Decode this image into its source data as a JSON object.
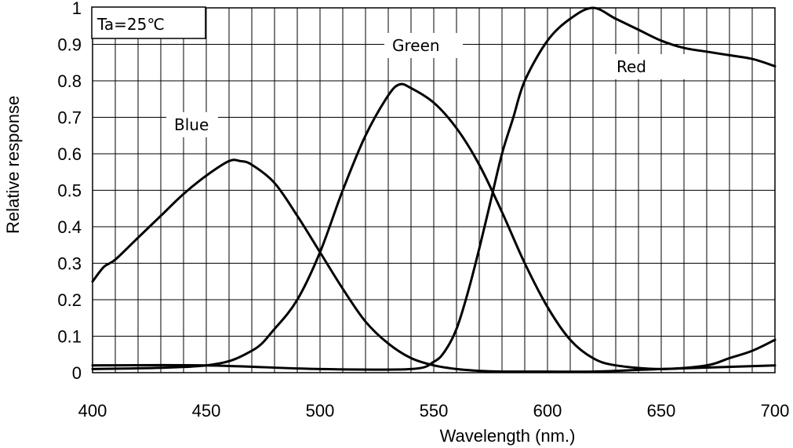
{
  "chart_data": {
    "type": "line",
    "title": "",
    "xlabel": "Wavelength (nm.)",
    "ylabel": "Relative response",
    "xlim": [
      400,
      700
    ],
    "ylim": [
      0,
      1
    ],
    "x_ticks": [
      "400",
      "450",
      "500",
      "550",
      "600",
      "650",
      "700"
    ],
    "y_ticks": [
      "0",
      "0.1",
      "0.2",
      "0.3",
      "0.4",
      "0.5",
      "0.6",
      "0.7",
      "0.8",
      "0.9",
      "1"
    ],
    "grid": true,
    "x_grid_step": 10,
    "y_grid_step": 0.1,
    "condition_label": "Ta=25℃",
    "line_color": "#000000",
    "series": [
      {
        "name": "Blue",
        "x": [
          400,
          405,
          410,
          420,
          430,
          440,
          450,
          460,
          465,
          470,
          480,
          490,
          500,
          510,
          520,
          530,
          540,
          550,
          560,
          570,
          580,
          600,
          620,
          650,
          700
        ],
        "y": [
          0.25,
          0.29,
          0.31,
          0.37,
          0.43,
          0.49,
          0.54,
          0.58,
          0.58,
          0.57,
          0.52,
          0.43,
          0.33,
          0.23,
          0.14,
          0.08,
          0.04,
          0.02,
          0.01,
          0.005,
          0.003,
          0.003,
          0.003,
          0.01,
          0.02
        ]
      },
      {
        "name": "Green",
        "x": [
          400,
          450,
          470,
          480,
          490,
          500,
          510,
          520,
          530,
          535,
          540,
          550,
          560,
          570,
          580,
          590,
          600,
          610,
          620,
          630,
          650,
          670,
          680,
          690,
          700
        ],
        "y": [
          0.01,
          0.02,
          0.06,
          0.12,
          0.2,
          0.33,
          0.5,
          0.65,
          0.76,
          0.79,
          0.78,
          0.74,
          0.67,
          0.57,
          0.44,
          0.3,
          0.18,
          0.09,
          0.04,
          0.02,
          0.01,
          0.02,
          0.04,
          0.06,
          0.09
        ]
      },
      {
        "name": "Red",
        "x": [
          400,
          450,
          500,
          540,
          550,
          555,
          560,
          565,
          570,
          575,
          580,
          585,
          590,
          600,
          610,
          620,
          630,
          640,
          650,
          660,
          670,
          680,
          690,
          700
        ],
        "y": [
          0.02,
          0.02,
          0.01,
          0.01,
          0.03,
          0.06,
          0.12,
          0.22,
          0.34,
          0.47,
          0.6,
          0.7,
          0.8,
          0.91,
          0.97,
          1.0,
          0.97,
          0.94,
          0.91,
          0.89,
          0.88,
          0.87,
          0.86,
          0.84
        ]
      }
    ]
  }
}
